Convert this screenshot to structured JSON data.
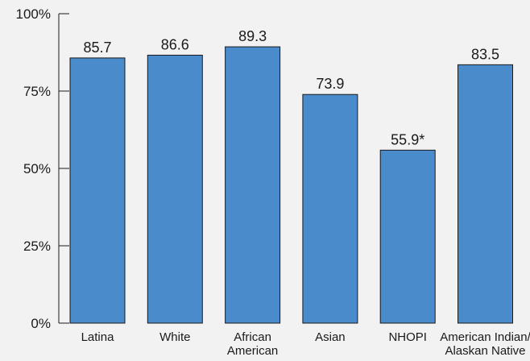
{
  "chart_data": {
    "type": "bar",
    "categories": [
      [
        "Latina"
      ],
      [
        "White"
      ],
      [
        "African",
        "American"
      ],
      [
        "Asian"
      ],
      [
        "NHOPI"
      ],
      [
        "American Indian/",
        "Alaskan Native"
      ]
    ],
    "values": [
      85.7,
      86.6,
      89.3,
      73.9,
      55.9,
      83.5
    ],
    "value_labels": [
      "85.7",
      "86.6",
      "89.3",
      "73.9",
      "55.9*",
      "83.5"
    ],
    "ylim": [
      0,
      100
    ],
    "yticks": [
      0,
      25,
      50,
      75,
      100
    ],
    "ytick_labels": [
      "0%",
      "25%",
      "50%",
      "75%",
      "100%"
    ],
    "title": "",
    "xlabel": "",
    "ylabel": "",
    "grid": false,
    "colors": {
      "bar": "#4a8bcb",
      "background": "#f2f2f2",
      "axis": "#1a1a1a"
    }
  }
}
